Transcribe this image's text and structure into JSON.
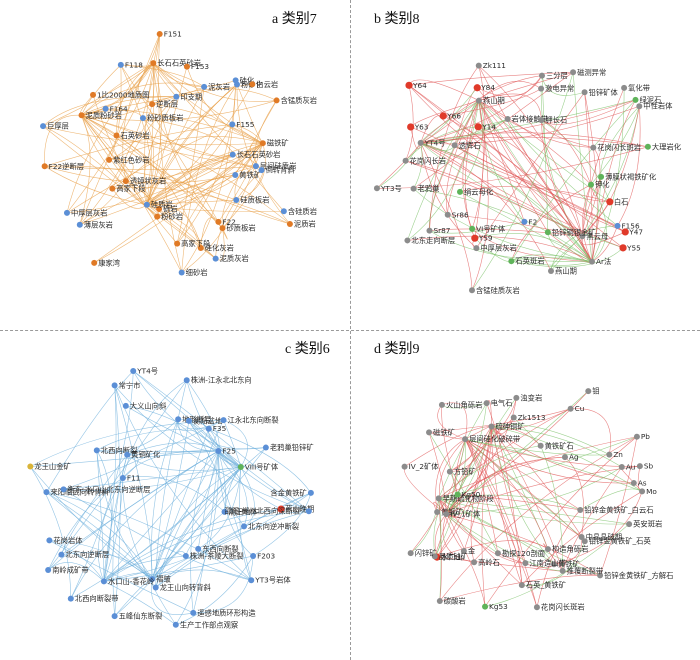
{
  "colors": {
    "edge_orange": "#e8a04a",
    "edge_red": "#e05a5a",
    "edge_green": "#7cc26a",
    "edge_blue": "#6fb0dc",
    "node_blue": "#5b8fd6",
    "node_orange": "#e07a26",
    "node_green": "#5fb35a",
    "node_red": "#e03a2a",
    "node_gray": "#8c8c8c",
    "node_purple": "#9b6fcf",
    "node_yellow": "#d9b43a"
  },
  "panels": [
    {
      "key": "a",
      "title": "a 类别7",
      "edge_color": "edge_orange",
      "nodes": [
        {
          "label": "层间硅质岩",
          "color": "node_blue"
        },
        {
          "label": "黄铁矿",
          "color": "node_blue"
        },
        {
          "label": "泥质岩",
          "color": "node_orange"
        },
        {
          "label": "含硅质岩",
          "color": "node_blue"
        },
        {
          "label": "硅质板岩",
          "color": "node_blue"
        },
        {
          "label": "F22",
          "color": "node_orange"
        },
        {
          "label": "砂质板岩",
          "color": "node_orange"
        },
        {
          "label": "泥质灰岩",
          "color": "node_blue"
        },
        {
          "label": "硅化灰岩",
          "color": "node_orange"
        },
        {
          "label": "高家下段",
          "color": "node_orange"
        },
        {
          "label": "细砂岩",
          "color": "node_blue"
        },
        {
          "label": "砾岩",
          "color": "node_orange"
        },
        {
          "label": "粉砂岩",
          "color": "node_orange"
        },
        {
          "label": "硅质岩",
          "color": "node_blue"
        },
        {
          "label": "康家湾",
          "color": "node_orange"
        },
        {
          "label": "薄层灰岩",
          "color": "node_blue"
        },
        {
          "label": "透镜状灰岩",
          "color": "node_orange"
        },
        {
          "label": "中厚层灰岩",
          "color": "node_blue"
        },
        {
          "label": "高家下段",
          "color": "node_orange"
        },
        {
          "label": "紫红色砂岩",
          "color": "node_orange"
        },
        {
          "label": "F22逆断层",
          "color": "node_orange"
        },
        {
          "label": "巨厚层",
          "color": "node_blue"
        },
        {
          "label": "石英砂岩",
          "color": "node_orange"
        },
        {
          "label": "泥质粉砂岩",
          "color": "node_orange"
        },
        {
          "label": "F164",
          "color": "node_blue"
        },
        {
          "label": "1比2000地质图",
          "color": "node_orange"
        },
        {
          "label": "粉砂质板岩",
          "color": "node_blue"
        },
        {
          "label": "逆断层",
          "color": "node_orange"
        },
        {
          "label": "F118",
          "color": "node_blue"
        },
        {
          "label": "长石石英砂岩",
          "color": "node_orange"
        },
        {
          "label": "F151",
          "color": "node_orange"
        },
        {
          "label": "印支期",
          "color": "node_blue"
        },
        {
          "label": "F153",
          "color": "node_orange"
        },
        {
          "label": "泥灰岩",
          "color": "node_blue"
        },
        {
          "label": "粉砂化",
          "color": "node_blue"
        },
        {
          "label": "硅化",
          "color": "node_blue"
        },
        {
          "label": "白云岩",
          "color": "node_orange"
        },
        {
          "label": "F155",
          "color": "node_blue"
        },
        {
          "label": "含锰质灰岩",
          "color": "node_orange"
        },
        {
          "label": "长石石英砂岩",
          "color": "node_blue"
        },
        {
          "label": "磁铁矿",
          "color": "node_orange"
        },
        {
          "label": "倒转背斜",
          "color": "node_blue"
        }
      ]
    },
    {
      "key": "b",
      "title": "b 类别8",
      "edge_color": "edge_red",
      "nodes": [
        {
          "label": "薄膜状褐铁矿化",
          "color": "node_green"
        },
        {
          "label": "白石",
          "color": "node_red"
        },
        {
          "label": "Y47",
          "color": "node_red"
        },
        {
          "label": "F156",
          "color": "node_blue"
        },
        {
          "label": "Y55",
          "color": "node_red"
        },
        {
          "label": "黑云母",
          "color": "node_gray"
        },
        {
          "label": "Ar法",
          "color": "node_gray"
        },
        {
          "label": "铅锌铜银金矿",
          "color": "node_green"
        },
        {
          "label": "燕山期",
          "color": "node_gray"
        },
        {
          "label": "F2",
          "color": "node_blue"
        },
        {
          "label": "石英斑岩",
          "color": "node_green"
        },
        {
          "label": "含锰硅质灰岩",
          "color": "node_gray"
        },
        {
          "label": "中厚层灰岩",
          "color": "node_gray"
        },
        {
          "label": "VI号矿体",
          "color": "node_green"
        },
        {
          "label": "Y59",
          "color": "node_red"
        },
        {
          "label": "Sr87",
          "color": "node_gray"
        },
        {
          "label": "Sr86",
          "color": "node_gray"
        },
        {
          "label": "北东走向断层",
          "color": "node_gray"
        },
        {
          "label": "绢云母化",
          "color": "node_green"
        },
        {
          "label": "YT3号",
          "color": "node_gray"
        },
        {
          "label": "老鸦巢",
          "color": "node_gray"
        },
        {
          "label": "花岗闪长岩",
          "color": "node_gray"
        },
        {
          "label": "透辉石",
          "color": "node_gray"
        },
        {
          "label": "YT4号",
          "color": "node_gray"
        },
        {
          "label": "Y63",
          "color": "node_red"
        },
        {
          "label": "Y64",
          "color": "node_red"
        },
        {
          "label": "Y66",
          "color": "node_red"
        },
        {
          "label": "Y14",
          "color": "node_red"
        },
        {
          "label": "Y84",
          "color": "node_red"
        },
        {
          "label": "燕山期",
          "color": "node_gray"
        },
        {
          "label": "Zk111",
          "color": "node_gray"
        },
        {
          "label": "岩体接触带",
          "color": "node_gray"
        },
        {
          "label": "激电异常",
          "color": "node_gray"
        },
        {
          "label": "钾长石",
          "color": "node_gray"
        },
        {
          "label": "三分层",
          "color": "node_gray"
        },
        {
          "label": "磁测异常",
          "color": "node_gray"
        },
        {
          "label": "铅锌矿体",
          "color": "node_gray"
        },
        {
          "label": "氧化带",
          "color": "node_gray"
        },
        {
          "label": "中性岩体",
          "color": "node_gray"
        },
        {
          "label": "绿泥石",
          "color": "node_green"
        },
        {
          "label": "花岗闪长斑岩",
          "color": "node_gray"
        },
        {
          "label": "大理岩化",
          "color": "node_green"
        },
        {
          "label": "钾化",
          "color": "node_green"
        }
      ]
    },
    {
      "key": "c",
      "title": "c 类别6",
      "edge_color": "edge_blue",
      "nodes": [
        {
          "label": "燕山晚期",
          "color": "node_red"
        },
        {
          "label": "潮田地体",
          "color": "node_blue"
        },
        {
          "label": "北东向逆冲断裂",
          "color": "node_blue"
        },
        {
          "label": "F203",
          "color": "node_blue"
        },
        {
          "label": "YT3号岩体",
          "color": "node_blue"
        },
        {
          "label": "东西向断裂",
          "color": "node_blue"
        },
        {
          "label": "株洲-茶陵大断裂",
          "color": "node_blue"
        },
        {
          "label": "遥感地质环形构造",
          "color": "node_blue"
        },
        {
          "label": "生产工作部点观察",
          "color": "node_blue"
        },
        {
          "label": "龙王山向转背斜",
          "color": "node_blue"
        },
        {
          "label": "褶皱",
          "color": "node_blue"
        },
        {
          "label": "五峰仙东断裂",
          "color": "node_blue"
        },
        {
          "label": "水口山-香花岭",
          "color": "node_blue"
        },
        {
          "label": "北西向断裂带",
          "color": "node_blue"
        },
        {
          "label": "南岭成矿带",
          "color": "node_blue"
        },
        {
          "label": "北东向逆断层",
          "color": "node_blue"
        },
        {
          "label": "花岗岩体",
          "color": "node_blue"
        },
        {
          "label": "来阳临武向转背斜",
          "color": "node_blue"
        },
        {
          "label": "衡东-水口山北东向逆断层",
          "color": "node_blue"
        },
        {
          "label": "龙王山金矿",
          "color": "node_yellow"
        },
        {
          "label": "F11",
          "color": "node_blue"
        },
        {
          "label": "北西向断裂",
          "color": "node_blue"
        },
        {
          "label": "黄铜矿化",
          "color": "node_blue"
        },
        {
          "label": "常宁市",
          "color": "node_blue"
        },
        {
          "label": "大义山向斜",
          "color": "node_blue"
        },
        {
          "label": "YT4号",
          "color": "node_blue"
        },
        {
          "label": "地形断层",
          "color": "node_blue"
        },
        {
          "label": "株洲-江永北北东向",
          "color": "node_blue"
        },
        {
          "label": "衡阳盆地",
          "color": "node_blue"
        },
        {
          "label": "F35",
          "color": "node_blue"
        },
        {
          "label": "江永北东向断裂",
          "color": "node_blue"
        },
        {
          "label": "F25",
          "color": "node_blue"
        },
        {
          "label": "老鸦巢铅锌矿",
          "color": "node_blue"
        },
        {
          "label": "VIII号矿体",
          "color": "node_green"
        },
        {
          "label": "含金黄铁矿",
          "color": "node_blue"
        },
        {
          "label": "邵阳-郴州北西向深断裂",
          "color": "node_blue"
        }
      ]
    },
    {
      "key": "d",
      "title": "d 类别9",
      "edge_color": "edge_red",
      "nodes": [
        {
          "label": "铅锌金黄铁矿_白云石",
          "color": "node_gray"
        },
        {
          "label": "英安斑岩",
          "color": "node_gray"
        },
        {
          "label": "铅锌金黄铁矿_石英",
          "color": "node_gray"
        },
        {
          "label": "中晶晶破期",
          "color": "node_gray"
        },
        {
          "label": "铅锌金黄铁矿_方解石",
          "color": "node_gray"
        },
        {
          "label": "构造角砾岩",
          "color": "node_gray"
        },
        {
          "label": "推覆断裂带",
          "color": "node_gray"
        },
        {
          "label": "黄铁矿",
          "color": "node_gray"
        },
        {
          "label": "江南造山带",
          "color": "node_gray"
        },
        {
          "label": "花岗闪长斑岩",
          "color": "node_gray"
        },
        {
          "label": "石英_黄铁矿",
          "color": "node_gray"
        },
        {
          "label": "勘探120剖面",
          "color": "node_gray"
        },
        {
          "label": "Kg53",
          "color": "node_green"
        },
        {
          "label": "高岭石",
          "color": "node_gray"
        },
        {
          "label": "碳酸岩",
          "color": "node_gray"
        },
        {
          "label": "金",
          "color": "node_gray"
        },
        {
          "label": "水口山",
          "color": "node_red"
        },
        {
          "label": "晶质铀矿",
          "color": "node_gray"
        },
        {
          "label": "闪锌矿",
          "color": "node_gray"
        },
        {
          "label": "黄铜矿",
          "color": "node_gray"
        },
        {
          "label": "IV_1矿体",
          "color": "node_gray"
        },
        {
          "label": "早期硫化物阶段",
          "color": "node_gray"
        },
        {
          "label": "Kg50",
          "color": "node_green"
        },
        {
          "label": "IV_2矿体",
          "color": "node_gray"
        },
        {
          "label": "方铅矿",
          "color": "node_gray"
        },
        {
          "label": "磁铁矿",
          "color": "node_gray"
        },
        {
          "label": "火山角砾岩",
          "color": "node_gray"
        },
        {
          "label": "层间硅化破碎带",
          "color": "node_gray"
        },
        {
          "label": "硫砷铜矿",
          "color": "node_gray"
        },
        {
          "label": "电气石",
          "color": "node_gray"
        },
        {
          "label": "Zk1513",
          "color": "node_gray"
        },
        {
          "label": "浊变岩",
          "color": "node_gray"
        },
        {
          "label": "黄铁矿石",
          "color": "node_gray"
        },
        {
          "label": "钼",
          "color": "node_gray"
        },
        {
          "label": "Cu",
          "color": "node_gray"
        },
        {
          "label": "Ag",
          "color": "node_gray"
        },
        {
          "label": "Zn",
          "color": "node_gray"
        },
        {
          "label": "Pb",
          "color": "node_gray"
        },
        {
          "label": "Au",
          "color": "node_gray"
        },
        {
          "label": "Sb",
          "color": "node_gray"
        },
        {
          "label": "As",
          "color": "node_gray"
        },
        {
          "label": "Mo",
          "color": "node_gray"
        }
      ]
    }
  ]
}
